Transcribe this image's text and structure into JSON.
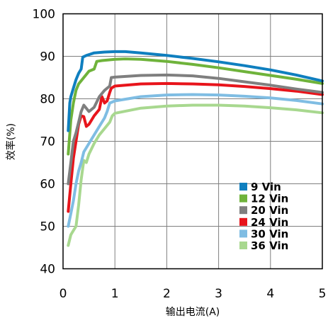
{
  "chart_data": {
    "type": "line",
    "title": "",
    "xlabel": "输出电流(A)",
    "ylabel": "效率(%)",
    "xlim": [
      0,
      5
    ],
    "ylim": [
      40,
      100
    ],
    "x_ticks": [
      "0",
      "1",
      "2",
      "3",
      "4",
      "5"
    ],
    "y_ticks": [
      "40",
      "50",
      "60",
      "70",
      "80",
      "90",
      "100"
    ],
    "grid": true,
    "legend_position": "bottom-right",
    "series": [
      {
        "name": "9 Vin",
        "color": "#0f7fbf",
        "points": [
          [
            0.1,
            72.5
          ],
          [
            0.13,
            79
          ],
          [
            0.15,
            80.5
          ],
          [
            0.2,
            82.5
          ],
          [
            0.25,
            84.5
          ],
          [
            0.3,
            86
          ],
          [
            0.35,
            87
          ],
          [
            0.38,
            89.8
          ],
          [
            0.45,
            90.2
          ],
          [
            0.6,
            90.8
          ],
          [
            0.8,
            91
          ],
          [
            1.0,
            91.1
          ],
          [
            1.2,
            91.1
          ],
          [
            1.5,
            90.8
          ],
          [
            2.0,
            90.2
          ],
          [
            2.5,
            89.5
          ],
          [
            3.0,
            88.7
          ],
          [
            3.5,
            87.8
          ],
          [
            4.0,
            86.8
          ],
          [
            4.5,
            85.6
          ],
          [
            5.0,
            84.2
          ]
        ]
      },
      {
        "name": "12 Vin",
        "color": "#6fb33b",
        "points": [
          [
            0.1,
            67
          ],
          [
            0.15,
            75
          ],
          [
            0.2,
            79
          ],
          [
            0.25,
            82
          ],
          [
            0.3,
            83.5
          ],
          [
            0.4,
            85
          ],
          [
            0.5,
            86.5
          ],
          [
            0.6,
            87
          ],
          [
            0.65,
            88.8
          ],
          [
            0.75,
            89
          ],
          [
            1.0,
            89.3
          ],
          [
            1.2,
            89.4
          ],
          [
            1.5,
            89.3
          ],
          [
            2.0,
            88.8
          ],
          [
            2.5,
            88.1
          ],
          [
            3.0,
            87.3
          ],
          [
            3.5,
            86.4
          ],
          [
            4.0,
            85.5
          ],
          [
            4.5,
            84.6
          ],
          [
            5.0,
            83.6
          ]
        ]
      },
      {
        "name": "20 Vin",
        "color": "#7f7f7f",
        "points": [
          [
            0.1,
            60
          ],
          [
            0.15,
            65
          ],
          [
            0.2,
            70
          ],
          [
            0.25,
            72
          ],
          [
            0.3,
            74.5
          ],
          [
            0.35,
            77
          ],
          [
            0.4,
            78.5
          ],
          [
            0.5,
            77
          ],
          [
            0.6,
            78
          ],
          [
            0.7,
            80.5
          ],
          [
            0.8,
            82
          ],
          [
            0.9,
            83
          ],
          [
            0.93,
            85
          ],
          [
            1.0,
            85.1
          ],
          [
            1.5,
            85.5
          ],
          [
            2.0,
            85.6
          ],
          [
            2.5,
            85.4
          ],
          [
            3.0,
            84.8
          ],
          [
            3.5,
            84
          ],
          [
            4.0,
            83.2
          ],
          [
            4.5,
            82.3
          ],
          [
            5.0,
            81.5
          ]
        ]
      },
      {
        "name": "24 Vin",
        "color": "#e8141b",
        "points": [
          [
            0.1,
            53.5
          ],
          [
            0.15,
            60
          ],
          [
            0.2,
            66
          ],
          [
            0.25,
            70
          ],
          [
            0.3,
            74
          ],
          [
            0.35,
            76
          ],
          [
            0.4,
            75.8
          ],
          [
            0.45,
            73.5
          ],
          [
            0.5,
            74
          ],
          [
            0.6,
            76
          ],
          [
            0.7,
            77.5
          ],
          [
            0.75,
            80.5
          ],
          [
            0.8,
            79
          ],
          [
            0.85,
            79.5
          ],
          [
            0.9,
            81.5
          ],
          [
            0.93,
            82.5
          ],
          [
            1.0,
            83
          ],
          [
            1.5,
            83.5
          ],
          [
            2.0,
            83.6
          ],
          [
            2.5,
            83.5
          ],
          [
            3.0,
            83.3
          ],
          [
            3.5,
            82.9
          ],
          [
            4.0,
            82.4
          ],
          [
            4.5,
            81.8
          ],
          [
            5.0,
            81
          ]
        ]
      },
      {
        "name": "30 Vin",
        "color": "#7fbde3",
        "points": [
          [
            0.1,
            50
          ],
          [
            0.15,
            53
          ],
          [
            0.2,
            56
          ],
          [
            0.25,
            60
          ],
          [
            0.3,
            63
          ],
          [
            0.35,
            65
          ],
          [
            0.4,
            67.5
          ],
          [
            0.5,
            69.5
          ],
          [
            0.6,
            71.5
          ],
          [
            0.7,
            73.5
          ],
          [
            0.8,
            75.5
          ],
          [
            0.85,
            77
          ],
          [
            0.9,
            79
          ],
          [
            1.0,
            79.5
          ],
          [
            1.5,
            80.5
          ],
          [
            2.0,
            80.9
          ],
          [
            2.5,
            81
          ],
          [
            3.0,
            80.9
          ],
          [
            3.5,
            80.6
          ],
          [
            4.0,
            80.2
          ],
          [
            4.5,
            79.6
          ],
          [
            5.0,
            78.8
          ]
        ]
      },
      {
        "name": "36 Vin",
        "color": "#a8d88f",
        "points": [
          [
            0.1,
            45.5
          ],
          [
            0.15,
            48
          ],
          [
            0.2,
            49
          ],
          [
            0.25,
            50
          ],
          [
            0.3,
            55
          ],
          [
            0.35,
            61
          ],
          [
            0.4,
            65.5
          ],
          [
            0.45,
            65
          ],
          [
            0.5,
            67
          ],
          [
            0.6,
            69.5
          ],
          [
            0.7,
            71.5
          ],
          [
            0.8,
            73
          ],
          [
            0.9,
            74.5
          ],
          [
            0.95,
            76
          ],
          [
            1.0,
            76.6
          ],
          [
            1.5,
            77.8
          ],
          [
            2.0,
            78.3
          ],
          [
            2.5,
            78.5
          ],
          [
            3.0,
            78.5
          ],
          [
            3.5,
            78.3
          ],
          [
            4.0,
            77.9
          ],
          [
            4.5,
            77.4
          ],
          [
            5.0,
            76.7
          ]
        ]
      }
    ]
  }
}
